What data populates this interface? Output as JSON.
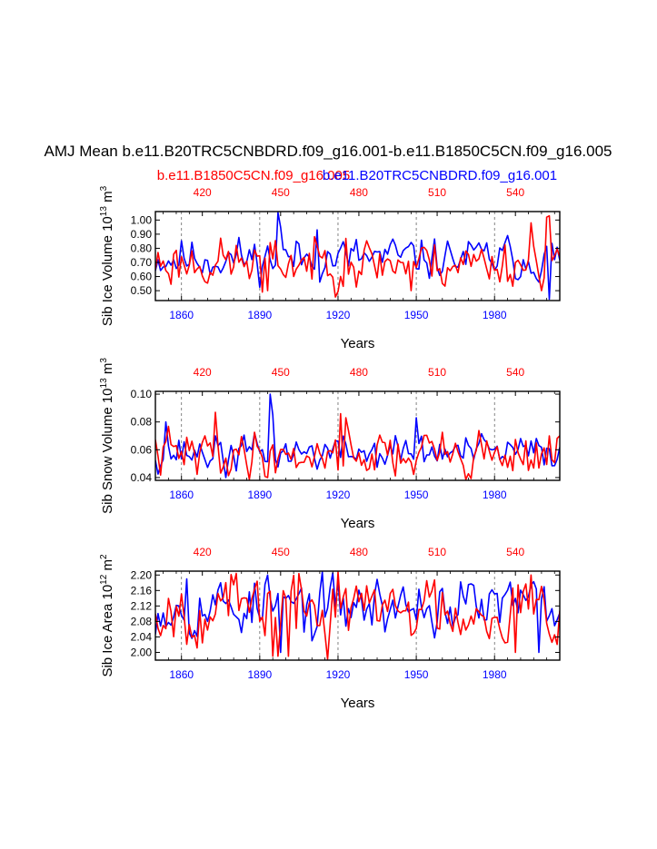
{
  "title": "AMJ Mean b.e11.B20TRC5CNBDRD.f09_g16.001-b.e11.B1850C5CN.f09_g16.005",
  "legend": {
    "red_label": "b.e11.B1850C5CN.f09_g16.005",
    "blue_label": "b.e11.B20TRC5CNBDRD.f09_g16.001"
  },
  "colors": {
    "red": "#ff0000",
    "blue": "#0000ff",
    "grid": "#666666",
    "axis": "#000000"
  },
  "chart_data": [
    {
      "type": "line",
      "ylabel": "Sib Ice Volume",
      "unit_base": "10",
      "unit_exp": "13",
      "unit_tail": "m",
      "unit_pow": "3",
      "xlabel": "Years",
      "ylim": [
        0.43,
        1.06
      ],
      "yticks": [
        0.5,
        0.6,
        0.7,
        0.8,
        0.9,
        1.0
      ],
      "ytick_labels": [
        "0.50",
        "0.60",
        "0.70",
        "0.80",
        "0.90",
        "1.00"
      ],
      "bottom_axis": {
        "range": [
          1850,
          2005
        ],
        "ticks": [
          1860,
          1890,
          1920,
          1950,
          1980
        ],
        "labels": [
          "1860",
          "1890",
          "1920",
          "1950",
          "1980"
        ]
      },
      "top_axis": {
        "range": [
          402,
          557
        ],
        "ticks": [
          420,
          450,
          480,
          510,
          540
        ],
        "labels": [
          "420",
          "450",
          "480",
          "510",
          "540"
        ]
      },
      "series": [
        {
          "name": "b.e11.B20TRC5CNBDRD.f09_g16.001",
          "color": "blue",
          "x_start": 1850,
          "seed": 11,
          "base": 0.73,
          "amp": 0.07,
          "events": [
            [
              1897,
              1.06
            ],
            [
              1898,
              0.95
            ],
            [
              1912,
              0.93
            ],
            [
              2001,
              0.44
            ],
            [
              1990,
              0.6
            ]
          ]
        },
        {
          "name": "b.e11.B1850C5CN.f09_g16.005",
          "color": "red",
          "x_start": 402,
          "seed": 23,
          "base": 0.7,
          "amp": 0.08,
          "events": [
            [
              443,
              0.49
            ],
            [
              445,
              0.5
            ],
            [
              475,
              0.87
            ],
            [
              500,
              0.5
            ],
            [
              553,
              1.03
            ],
            [
              552,
              1.02
            ],
            [
              546,
              0.98
            ]
          ]
        }
      ]
    },
    {
      "type": "line",
      "ylabel": "Sib Snow Volume",
      "unit_base": "10",
      "unit_exp": "13",
      "unit_tail": "m",
      "unit_pow": "3",
      "xlabel": "Years",
      "ylim": [
        0.038,
        0.102
      ],
      "yticks": [
        0.04,
        0.06,
        0.08,
        0.1
      ],
      "ytick_labels": [
        "0.04",
        "0.06",
        "0.08",
        "0.10"
      ],
      "bottom_axis": {
        "range": [
          1850,
          2005
        ],
        "ticks": [
          1860,
          1890,
          1920,
          1950,
          1980
        ],
        "labels": [
          "1860",
          "1890",
          "1920",
          "1950",
          "1980"
        ]
      },
      "top_axis": {
        "range": [
          402,
          557
        ],
        "ticks": [
          420,
          450,
          480,
          510,
          540
        ],
        "labels": [
          "420",
          "450",
          "480",
          "510",
          "540"
        ]
      },
      "series": [
        {
          "name": "b.e11.B20TRC5CNBDRD.f09_g16.001",
          "color": "blue",
          "x_start": 1850,
          "seed": 37,
          "base": 0.058,
          "amp": 0.006,
          "events": [
            [
              1854,
              0.08
            ],
            [
              1894,
              0.1
            ],
            [
              1895,
              0.085
            ],
            [
              1950,
              0.083
            ],
            [
              1877,
              0.04
            ]
          ]
        },
        {
          "name": "b.e11.B1850C5CN.f09_g16.005",
          "color": "red",
          "x_start": 402,
          "seed": 41,
          "base": 0.057,
          "amp": 0.008,
          "events": [
            [
              425,
              0.087
            ],
            [
              473,
              0.086
            ],
            [
              475,
              0.083
            ],
            [
              445,
              0.04
            ],
            [
              553,
              0.07
            ]
          ]
        }
      ]
    },
    {
      "type": "line",
      "ylabel": "Sib Ice Area",
      "unit_base": "10",
      "unit_exp": "12",
      "unit_tail": "m",
      "unit_pow": "2",
      "xlabel": "Years",
      "ylim": [
        1.98,
        2.21
      ],
      "yticks": [
        2.0,
        2.04,
        2.08,
        2.12,
        2.16,
        2.2
      ],
      "ytick_labels": [
        "2.00",
        "2.04",
        "2.08",
        "2.12",
        "2.16",
        "2.20"
      ],
      "bottom_axis": {
        "range": [
          1850,
          2005
        ],
        "ticks": [
          1860,
          1890,
          1920,
          1950,
          1980
        ],
        "labels": [
          "1860",
          "1890",
          "1920",
          "1950",
          "1980"
        ]
      },
      "top_axis": {
        "range": [
          402,
          557
        ],
        "ticks": [
          420,
          450,
          480,
          510,
          540
        ],
        "labels": [
          "420",
          "450",
          "480",
          "510",
          "540"
        ]
      },
      "series": [
        {
          "name": "b.e11.B20TRC5CNBDRD.f09_g16.001",
          "color": "blue",
          "x_start": 1850,
          "seed": 53,
          "base": 2.12,
          "amp": 0.035,
          "events": [
            [
              1862,
              2.19
            ],
            [
              1893,
              2.2
            ],
            [
              1898,
              2.0
            ],
            [
              1997,
              2.0
            ],
            [
              1910,
              2.03
            ]
          ]
        },
        {
          "name": "b.e11.B1850C5CN.f09_g16.005",
          "color": "red",
          "x_start": 402,
          "seed": 67,
          "base": 2.115,
          "amp": 0.04,
          "events": [
            [
              447,
              1.99
            ],
            [
              449,
              1.99
            ],
            [
              453,
              1.99
            ],
            [
              468,
              1.98
            ],
            [
              472,
              2.21
            ],
            [
              540,
              2.0
            ],
            [
              546,
              2.2
            ]
          ]
        }
      ]
    }
  ]
}
